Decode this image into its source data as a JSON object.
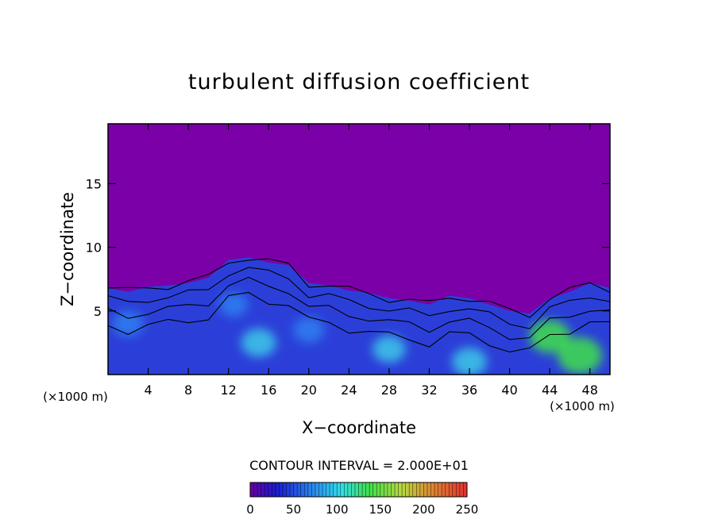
{
  "chart_data": {
    "type": "heatmap",
    "title": "turbulent diffusion coefficient",
    "xlabel": "X−coordinate",
    "ylabel": "Z−coordinate",
    "x_unit_left": "(×1000 m)",
    "x_unit_right": "(×1000 m)",
    "xlim": [
      0,
      50
    ],
    "ylim": [
      0,
      19.7
    ],
    "x_ticks": [
      4,
      8,
      12,
      16,
      20,
      24,
      28,
      32,
      36,
      40,
      44,
      48
    ],
    "y_ticks": [
      5,
      10,
      15
    ],
    "contour_interval_label": "CONTOUR INTERVAL = 2.000E+01",
    "colorbar": {
      "min": 0,
      "max": 250,
      "ticks": [
        0,
        50,
        100,
        150,
        200,
        250
      ]
    },
    "colors": {
      "background_field": "#7b00a8",
      "low": "#2b3fd8",
      "mid": "#3cc8e8",
      "high": "#3fe04a",
      "contour": "#000000"
    },
    "turbulent_layer_top": [
      [
        0,
        6.8
      ],
      [
        2,
        6.5
      ],
      [
        4,
        6.9
      ],
      [
        6,
        7.0
      ],
      [
        8,
        7.2
      ],
      [
        10,
        7.6
      ],
      [
        12,
        9.0
      ],
      [
        14,
        9.2
      ],
      [
        16,
        8.8
      ],
      [
        18,
        8.6
      ],
      [
        20,
        7.2
      ],
      [
        22,
        7.0
      ],
      [
        24,
        6.6
      ],
      [
        26,
        6.4
      ],
      [
        28,
        6.0
      ],
      [
        30,
        5.8
      ],
      [
        32,
        5.5
      ],
      [
        34,
        6.2
      ],
      [
        36,
        6.0
      ],
      [
        38,
        5.5
      ],
      [
        40,
        5.0
      ],
      [
        42,
        4.8
      ],
      [
        44,
        6.0
      ],
      [
        46,
        6.5
      ],
      [
        48,
        7.2
      ],
      [
        50,
        6.8
      ]
    ],
    "energetic_regions": [
      {
        "x": 12.5,
        "z": 5.5,
        "level": 70
      },
      {
        "x": 15.0,
        "z": 2.5,
        "level": 100
      },
      {
        "x": 20.0,
        "z": 3.5,
        "level": 80
      },
      {
        "x": 28.0,
        "z": 2.0,
        "level": 90
      },
      {
        "x": 36.0,
        "z": 1.0,
        "level": 100
      },
      {
        "x": 44.0,
        "z": 3.0,
        "level": 130
      },
      {
        "x": 47.0,
        "z": 1.5,
        "level": 150
      },
      {
        "x": 2.0,
        "z": 4.0,
        "level": 80
      }
    ]
  }
}
